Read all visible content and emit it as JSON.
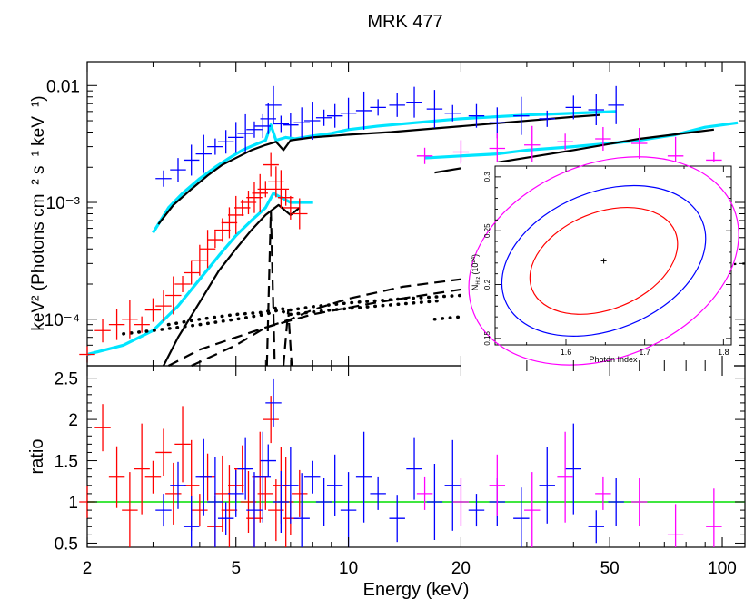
{
  "chart_data": [
    {
      "type": "scatter",
      "title": "MRK 477",
      "xlabel": "Energy (keV)",
      "ylabel": "keV² (Photons cm⁻² s⁻¹ keV⁻¹)",
      "xscale": "log",
      "yscale": "log",
      "xlim": [
        2,
        115
      ],
      "ylim": [
        4e-05,
        0.016
      ],
      "x_ticks": [
        {
          "v": 2,
          "label": "2"
        },
        {
          "v": 5,
          "label": "5"
        },
        {
          "v": 10,
          "label": "10"
        },
        {
          "v": 20,
          "label": "20"
        },
        {
          "v": 50,
          "label": "50"
        },
        {
          "v": 100,
          "label": "100"
        }
      ],
      "y_ticks": [
        {
          "v": 0.0001,
          "label": "10⁻⁴"
        },
        {
          "v": 0.001,
          "label": "10⁻³"
        },
        {
          "v": 0.01,
          "label": "0.01"
        }
      ],
      "series": [
        {
          "name": "red data",
          "color": "#ff0000",
          "x": [
            2.0,
            2.2,
            2.4,
            2.6,
            2.8,
            3.0,
            3.2,
            3.4,
            3.6,
            3.8,
            4.0,
            4.2,
            4.4,
            4.6,
            4.8,
            5.0,
            5.2,
            5.4,
            5.6,
            5.8,
            6.0,
            6.2,
            6.4,
            6.6,
            6.8,
            7.0,
            7.4
          ],
          "y": [
            5e-05,
            8e-05,
            9e-05,
            0.0001,
            9e-05,
            0.00012,
            0.00013,
            0.00016,
            0.0002,
            0.00025,
            0.00032,
            0.0004,
            0.00048,
            0.00058,
            0.00067,
            0.00078,
            0.0009,
            0.001,
            0.0011,
            0.0012,
            0.0013,
            0.0021,
            0.0015,
            0.0013,
            0.0011,
            0.0009,
            0.0008
          ]
        },
        {
          "name": "blue data",
          "color": "#0000ff",
          "x": [
            3.2,
            3.5,
            3.8,
            4.1,
            4.4,
            4.7,
            5.0,
            5.3,
            5.6,
            5.9,
            6.1,
            6.3,
            6.6,
            7.0,
            7.5,
            8.0,
            8.6,
            9.2,
            10.0,
            11.0,
            12.0,
            13.5,
            15.0,
            17.0,
            19.0,
            22.0,
            25.0,
            29.0,
            34.0,
            40.0,
            46.0,
            52.0
          ],
          "y": [
            0.0016,
            0.0019,
            0.0023,
            0.0026,
            0.003,
            0.0033,
            0.0036,
            0.0039,
            0.0042,
            0.0045,
            0.0052,
            0.0068,
            0.0047,
            0.0046,
            0.0048,
            0.005,
            0.0053,
            0.0055,
            0.0058,
            0.0061,
            0.0065,
            0.0068,
            0.0072,
            0.0063,
            0.0058,
            0.0055,
            0.0048,
            0.0055,
            0.0052,
            0.0065,
            0.0062,
            0.0068
          ]
        },
        {
          "name": "magenta data",
          "color": "#ff00ff",
          "x": [
            16.0,
            20.0,
            25.0,
            31.0,
            38.0,
            48.0,
            60.0,
            75.0,
            95.0
          ],
          "y": [
            0.0025,
            0.0027,
            0.0029,
            0.0031,
            0.0033,
            0.0035,
            0.0032,
            0.0025,
            0.0023
          ]
        },
        {
          "name": "cyan model (upper)",
          "color": "#00e5ff",
          "x": [
            3.0,
            3.3,
            3.6,
            4.0,
            4.4,
            4.8,
            5.2,
            5.6,
            6.0,
            6.2,
            6.4,
            6.8,
            7.2,
            8.0,
            9.0,
            10.0,
            12.0,
            15.0,
            20.0,
            30.0,
            40.0,
            52.0
          ],
          "y": [
            0.00055,
            0.0009,
            0.0012,
            0.0016,
            0.002,
            0.0024,
            0.0028,
            0.0031,
            0.0034,
            0.0046,
            0.0034,
            0.0036,
            0.0035,
            0.0037,
            0.0039,
            0.0042,
            0.0045,
            0.0048,
            0.0052,
            0.0056,
            0.0058,
            0.006
          ]
        },
        {
          "name": "cyan model (lower)",
          "color": "#00e5ff",
          "x": [
            2.0,
            2.5,
            3.0,
            3.5,
            4.0,
            4.5,
            5.0,
            5.5,
            6.0,
            6.3,
            6.6,
            7.0,
            8.0
          ],
          "y": [
            5e-05,
            6e-05,
            8e-05,
            0.00013,
            0.00022,
            0.00035,
            0.00052,
            0.0007,
            0.0009,
            0.0012,
            0.0011,
            0.001,
            0.001
          ]
        },
        {
          "name": "cyan model (magenta)",
          "color": "#00e5ff",
          "x": [
            16.0,
            20.0,
            25.0,
            30.0,
            40.0,
            50.0,
            60.0,
            75.0,
            90.0,
            110.0
          ],
          "y": [
            0.0024,
            0.0025,
            0.0026,
            0.0028,
            0.003,
            0.0032,
            0.0034,
            0.0038,
            0.0044,
            0.0048
          ]
        },
        {
          "name": "black model (upper)",
          "color": "#000000",
          "x": [
            3.1,
            3.4,
            3.8,
            4.2,
            4.6,
            5.0,
            5.5,
            6.0,
            6.4,
            6.7,
            7.0,
            8.0,
            10.0,
            13.0,
            17.0,
            22.0,
            30.0,
            40.0,
            47.0
          ],
          "y": [
            0.00065,
            0.00095,
            0.0013,
            0.0017,
            0.0021,
            0.0024,
            0.0028,
            0.0031,
            0.0033,
            0.0028,
            0.0034,
            0.0036,
            0.0038,
            0.004,
            0.0043,
            0.0046,
            0.005,
            0.0054,
            0.0056
          ]
        },
        {
          "name": "black model (lower)",
          "color": "#000000",
          "x": [
            3.2,
            3.5,
            4.0,
            4.5,
            5.0,
            5.5,
            6.0,
            6.5,
            7.0,
            7.4
          ],
          "y": [
            4e-05,
            7e-05,
            0.00014,
            0.00026,
            0.0004,
            0.00058,
            0.00078,
            0.00095,
            0.00078,
            0.0009
          ]
        },
        {
          "name": "black model (magenta)",
          "color": "#000000",
          "x": [
            17.0,
            25.0,
            40.0,
            60.0,
            95.0
          ],
          "y": [
            0.0018,
            0.0022,
            0.0028,
            0.0035,
            0.0042
          ]
        },
        {
          "name": "dashed power law (upper)",
          "color": "#000000",
          "dash": "dashed",
          "x": [
            3.3,
            4.0,
            5.0,
            6.0,
            8.0,
            12.0,
            20.0,
            35.0,
            50.0,
            115.0
          ],
          "y": [
            4e-05,
            5.5e-05,
            7e-05,
            8.5e-05,
            0.00011,
            0.00014,
            0.00018,
            0.00022,
            0.00026,
            0.0003
          ]
        },
        {
          "name": "dashed power law (lower)",
          "color": "#000000",
          "dash": "dashed",
          "x": [
            3.8,
            5.0,
            6.0,
            7.0,
            8.0,
            10.0,
            14.0,
            20.0,
            30.0
          ],
          "y": [
            4e-05,
            6e-05,
            8.5e-05,
            0.0001,
            0.00012,
            0.00015,
            0.00019,
            0.00022,
            0.00025
          ]
        },
        {
          "name": "dashed Fe line (blue)",
          "color": "#000000",
          "dash": "dashed",
          "x": [
            6.05,
            6.2,
            6.35
          ],
          "y": [
            4e-05,
            0.00085,
            4e-05
          ]
        },
        {
          "name": "dashed Fe line (red)",
          "color": "#000000",
          "dash": "dashed",
          "x": [
            6.7,
            6.9,
            7.05
          ],
          "y": [
            4e-05,
            0.00012,
            4e-05
          ]
        },
        {
          "name": "dotted scattered (upper)",
          "color": "#000000",
          "dash": "dotted",
          "x": [
            3.3,
            4.0,
            5.0,
            6.0,
            6.4,
            7.0,
            8.0,
            10.0,
            14.0,
            20.0,
            27.0
          ],
          "y": [
            9e-05,
            0.0001,
            0.00011,
            0.000115,
            0.000125,
            0.00012,
            0.000128,
            0.000138,
            0.00015,
            0.00016,
            0.00017
          ]
        },
        {
          "name": "dotted scattered (lower)",
          "color": "#000000",
          "dash": "dotted",
          "x": [
            2.5,
            3.0,
            4.0,
            5.0,
            6.0,
            6.5,
            7.0,
            9.0,
            12.0,
            18.0
          ],
          "y": [
            7.5e-05,
            8e-05,
            9e-05,
            0.0001,
            0.00011,
            0.00012,
            0.00011,
            0.00012,
            0.00013,
            0.000145
          ]
        },
        {
          "name": "dotted scattered (magenta)",
          "color": "#000000",
          "dash": "dotted",
          "x": [
            17.0,
            20.0,
            25.0
          ],
          "y": [
            0.0001,
            0.000105,
            0.00011
          ]
        }
      ]
    },
    {
      "type": "scatter",
      "title": "",
      "xlabel": "Energy (keV)",
      "ylabel": "ratio",
      "xscale": "log",
      "yscale": "linear",
      "xlim": [
        2,
        115
      ],
      "ylim": [
        0.45,
        2.65
      ],
      "y_ticks": [
        {
          "v": 0.5,
          "label": "0.5"
        },
        {
          "v": 1,
          "label": "1"
        },
        {
          "v": 1.5,
          "label": "1.5"
        },
        {
          "v": 2,
          "label": "2"
        },
        {
          "v": 2.5,
          "label": "2.5"
        }
      ],
      "reference_line": {
        "y": 1,
        "color": "#00dd00"
      },
      "series": [
        {
          "name": "red ratio",
          "color": "#ff0000",
          "x": [
            2.0,
            2.2,
            2.4,
            2.6,
            2.8,
            3.0,
            3.2,
            3.4,
            3.6,
            3.8,
            4.0,
            4.2,
            4.4,
            4.6,
            4.8,
            5.0,
            5.2,
            5.4,
            5.6,
            5.8,
            6.0,
            6.2,
            6.4,
            6.6,
            6.8,
            7.0,
            7.4
          ],
          "y": [
            1.0,
            1.9,
            1.3,
            0.9,
            1.4,
            1.3,
            1.6,
            1.1,
            1.7,
            1.2,
            0.9,
            1.3,
            0.7,
            1.1,
            0.9,
            1.2,
            1.4,
            1.0,
            0.8,
            1.3,
            1.1,
            2.0,
            0.9,
            1.2,
            1.0,
            0.8,
            1.1
          ]
        },
        {
          "name": "blue ratio",
          "color": "#0000ff",
          "x": [
            3.2,
            3.5,
            3.8,
            4.1,
            4.4,
            4.7,
            5.0,
            5.3,
            5.6,
            5.9,
            6.1,
            6.3,
            6.6,
            7.0,
            7.5,
            8.0,
            8.6,
            9.2,
            10.0,
            11.0,
            12.0,
            13.5,
            15.0,
            17.0,
            19.0,
            22.0,
            25.0,
            29.0,
            34.0,
            40.0,
            46.0,
            52.0
          ],
          "y": [
            0.9,
            1.2,
            0.7,
            1.3,
            1.0,
            0.8,
            1.1,
            1.4,
            0.9,
            1.3,
            1.5,
            2.2,
            1.0,
            1.2,
            0.8,
            1.3,
            1.0,
            1.2,
            0.9,
            1.3,
            1.1,
            0.8,
            1.4,
            1.0,
            1.2,
            0.9,
            1.0,
            0.8,
            1.2,
            1.4,
            0.7,
            1.0
          ]
        },
        {
          "name": "magenta ratio",
          "color": "#ff00ff",
          "x": [
            16.0,
            20.0,
            25.0,
            31.0,
            38.0,
            48.0,
            60.0,
            75.0,
            95.0
          ],
          "y": [
            1.1,
            1.0,
            1.2,
            0.9,
            1.3,
            1.1,
            1.0,
            0.6,
            0.7
          ]
        }
      ]
    },
    {
      "type": "scatter",
      "title": "",
      "xlabel": "Photon Index",
      "ylabel_text": "N",
      "ylabel_sub": "H,z",
      "ylabel_tail": "(10",
      "ylabel_sup": "24",
      "ylabel_close": ")",
      "xlim": [
        1.51,
        1.81
      ],
      "ylim": [
        0.144,
        0.31
      ],
      "x_ticks": [
        {
          "v": 1.6,
          "label": "1.6"
        },
        {
          "v": 1.7,
          "label": "1.7"
        },
        {
          "v": 1.8,
          "label": "1.8"
        }
      ],
      "y_ticks": [
        {
          "v": 0.15,
          "label": "0.15"
        },
        {
          "v": 0.2,
          "label": "0.2"
        },
        {
          "v": 0.25,
          "label": "0.25"
        },
        {
          "v": 0.3,
          "label": "0.3"
        }
      ],
      "best_fit": {
        "x": 1.648,
        "y": 0.222
      },
      "contours": [
        {
          "name": "68%",
          "color": "#ff0000",
          "half_x": 0.098,
          "half_y": 0.045
        },
        {
          "name": "90%",
          "color": "#0000ff",
          "half_x": 0.135,
          "half_y": 0.064
        },
        {
          "name": "99%",
          "color": "#ff00ff",
          "half_x": 0.178,
          "half_y": 0.09
        }
      ]
    }
  ]
}
